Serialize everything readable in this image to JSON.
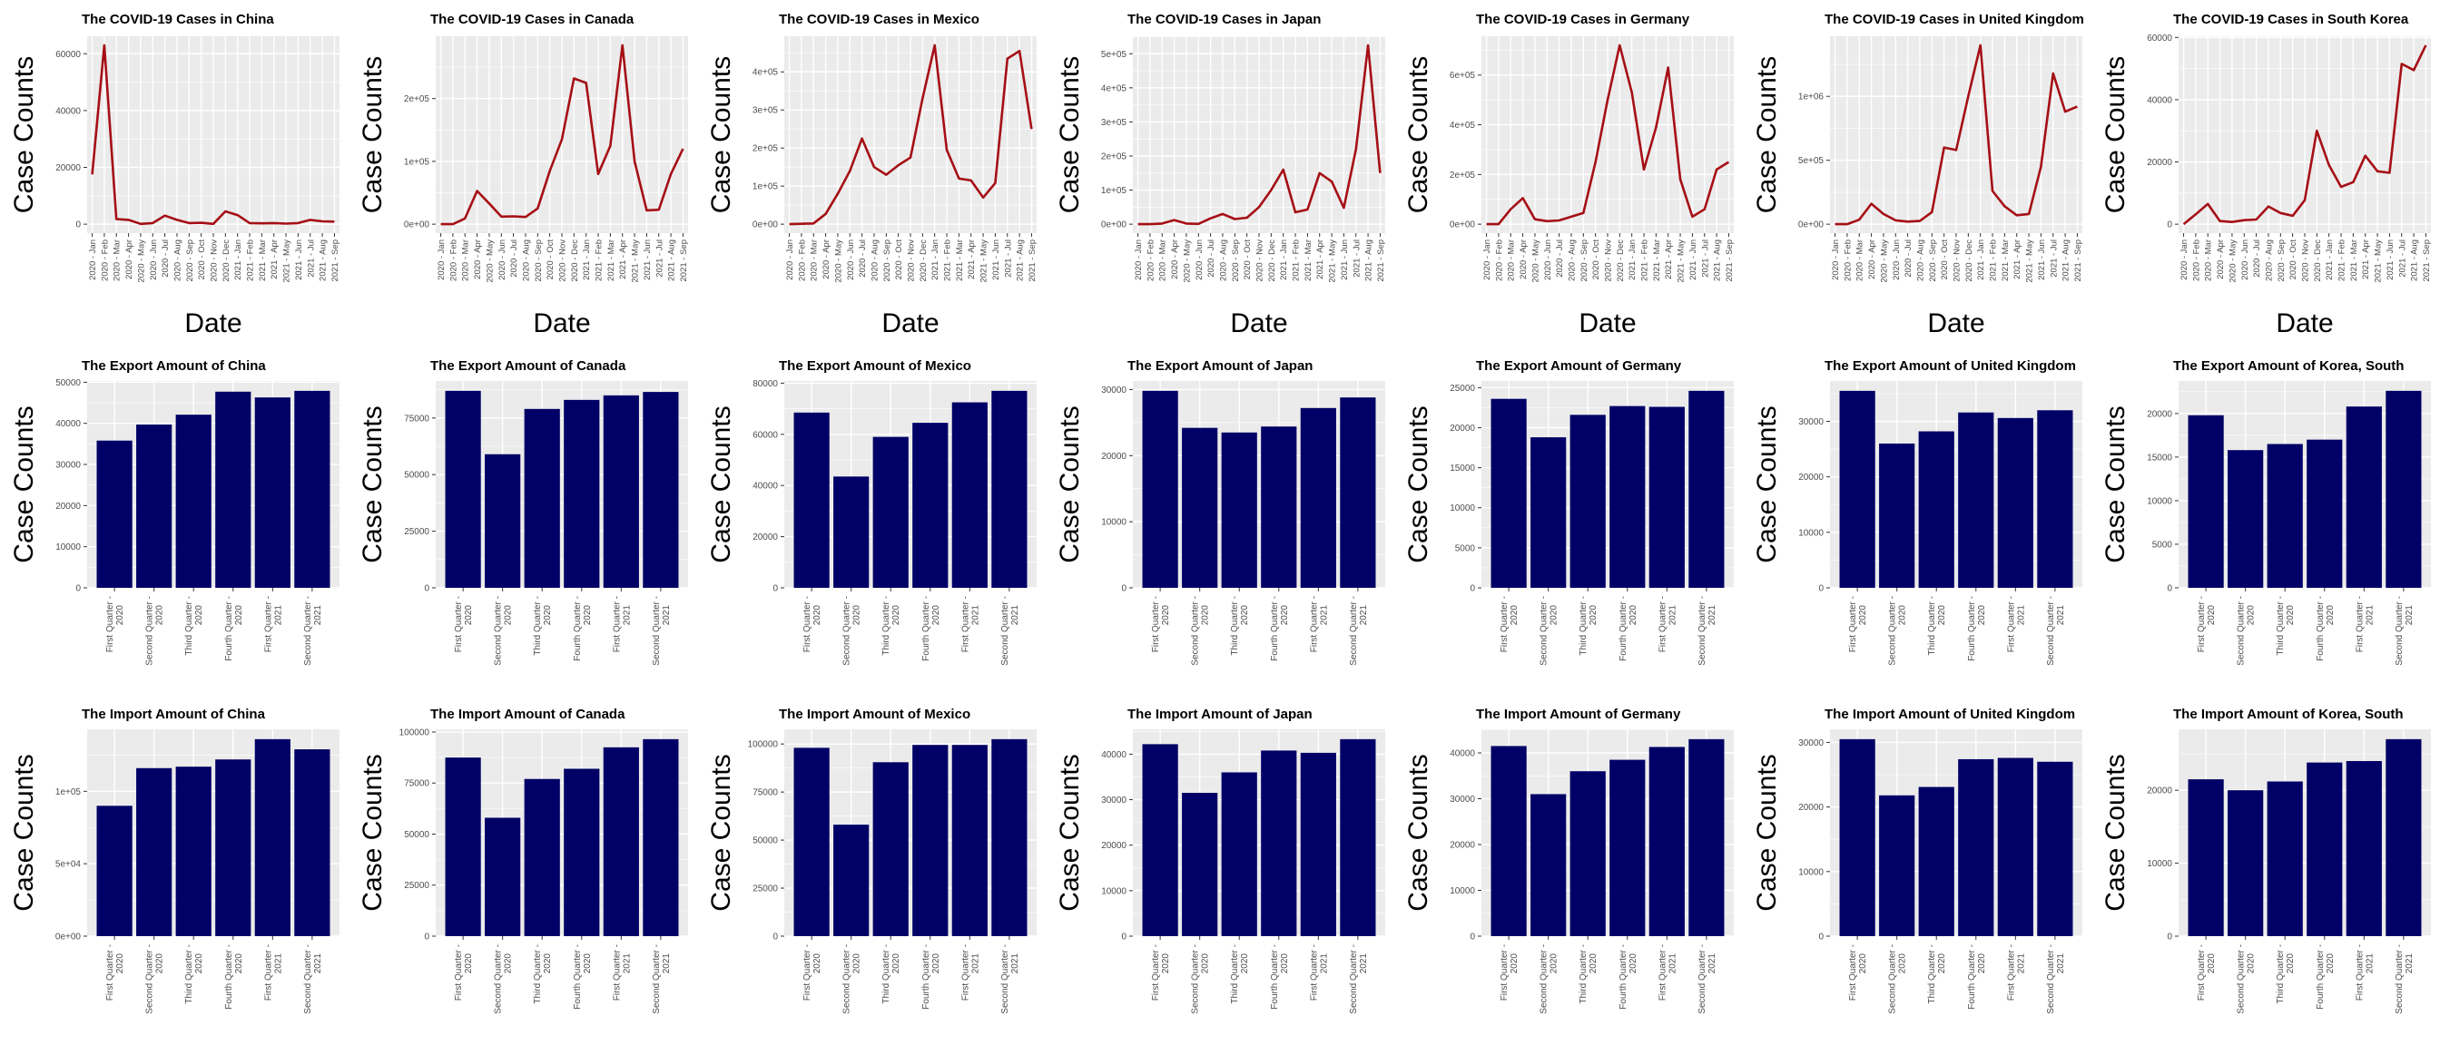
{
  "colors": {
    "panel_bg": "#ebebeb",
    "grid_major": "#ffffff",
    "line": "#a50f15",
    "bar": "#000066",
    "text": "#000000",
    "tick_text": "#4d4d4d"
  },
  "chart_data": [
    {
      "type": "line",
      "title": "The COVID-19 Cases in China",
      "xlabel": "Date",
      "ylabel": "Case Counts",
      "categories": [
        "2020 - Jan",
        "2020 - Feb",
        "2020 - Mar",
        "2020 - Apr",
        "2020 - May",
        "2020 - Jun",
        "2020 - Jul",
        "2020 - Aug",
        "2020 - Sep",
        "2020 - Oct",
        "2020 - Nov",
        "2020 - Dec",
        "2021 - Jan",
        "2021 - Feb",
        "2021 - Mar",
        "2021 - Apr",
        "2021 - May",
        "2021 - Jun",
        "2021 - Jul",
        "2021 - Aug",
        "2021 - Sep"
      ],
      "values": [
        17500,
        63000,
        1800,
        1500,
        100,
        400,
        3000,
        1500,
        400,
        500,
        100,
        4500,
        3200,
        400,
        300,
        400,
        200,
        400,
        1500,
        1000,
        900
      ],
      "yticks": [
        "0",
        "20000",
        "40000",
        "60000"
      ],
      "ytick_values": [
        0,
        20000,
        40000,
        60000
      ],
      "ylim": [
        -3150,
        66150
      ],
      "grid": true
    },
    {
      "type": "line",
      "title": "The COVID-19 Cases in Canada",
      "xlabel": "Date",
      "ylabel": "Case Counts",
      "categories": [
        "2020 - Jan",
        "2020 - Feb",
        "2020 - Mar",
        "2020 - Apr",
        "2020 - May",
        "2020 - Jun",
        "2020 - Jul",
        "2020 - Aug",
        "2020 - Sep",
        "2020 - Oct",
        "2020 - Nov",
        "2020 - Dec",
        "2021 - Jan",
        "2021 - Feb",
        "2021 - Mar",
        "2021 - Apr",
        "2021 - May",
        "2021 - Jun",
        "2021 - Jul",
        "2021 - Aug",
        "2021 - Sep"
      ],
      "values": [
        0,
        50,
        9000,
        53000,
        33000,
        12000,
        12500,
        11500,
        25000,
        85000,
        135000,
        232000,
        225000,
        80000,
        125000,
        285000,
        100000,
        22000,
        23000,
        80000,
        120000
      ],
      "yticks": [
        "0e+00",
        "1e+05",
        "2e+05"
      ],
      "ytick_values": [
        0,
        100000,
        200000
      ],
      "ylim": [
        -14250,
        299250
      ],
      "grid": true
    },
    {
      "type": "line",
      "title": "The COVID-19 Cases in Mexico",
      "xlabel": "Date",
      "ylabel": "Case Counts",
      "categories": [
        "2020 - Jan",
        "2020 - Feb",
        "2020 - Mar",
        "2020 - Apr",
        "2020 - May",
        "2020 - Jun",
        "2020 - Jul",
        "2020 - Aug",
        "2020 - Sep",
        "2020 - Oct",
        "2020 - Nov",
        "2020 - Dec",
        "2021 - Jan",
        "2021 - Feb",
        "2021 - Mar",
        "2021 - Apr",
        "2021 - May",
        "2021 - Jun",
        "2021 - Jul",
        "2021 - Aug",
        "2021 - Sep"
      ],
      "values": [
        0,
        1000,
        2000,
        27000,
        80000,
        140000,
        225000,
        150000,
        130000,
        155000,
        175000,
        330000,
        470000,
        195000,
        120000,
        115000,
        70000,
        108000,
        435000,
        455000,
        250000
      ],
      "yticks": [
        "0e+00",
        "1e+05",
        "2e+05",
        "3e+05",
        "4e+05"
      ],
      "ytick_values": [
        0,
        100000,
        200000,
        300000,
        400000
      ],
      "ylim": [
        -23500,
        493500
      ],
      "grid": true
    },
    {
      "type": "line",
      "title": "The COVID-19 Cases in Japan",
      "xlabel": "Date",
      "ylabel": "Case Counts",
      "categories": [
        "2020 - Jan",
        "2020 - Feb",
        "2020 - Mar",
        "2020 - Apr",
        "2020 - May",
        "2020 - Jun",
        "2020 - Jul",
        "2020 - Aug",
        "2020 - Sep",
        "2020 - Oct",
        "2020 - Nov",
        "2020 - Dec",
        "2021 - Jan",
        "2021 - Feb",
        "2021 - Mar",
        "2021 - Apr",
        "2021 - May",
        "2021 - Jun",
        "2021 - Jul",
        "2021 - Aug",
        "2021 - Sep"
      ],
      "values": [
        0,
        200,
        2000,
        12000,
        2000,
        1000,
        17000,
        30000,
        15000,
        19000,
        50000,
        100000,
        160000,
        35000,
        43000,
        150000,
        125000,
        48000,
        220000,
        525000,
        150000
      ],
      "yticks": [
        "0e+00",
        "1e+05",
        "2e+05",
        "3e+05",
        "4e+05",
        "5e+05"
      ],
      "ytick_values": [
        0,
        100000,
        200000,
        300000,
        400000,
        500000
      ],
      "ylim": [
        -26250,
        551250
      ],
      "grid": true
    },
    {
      "type": "line",
      "title": "The COVID-19 Cases in Germany",
      "xlabel": "Date",
      "ylabel": "Case Counts",
      "categories": [
        "2020 - Jan",
        "2020 - Feb",
        "2020 - Mar",
        "2020 - Apr",
        "2020 - May",
        "2020 - Jun",
        "2020 - Jul",
        "2020 - Aug",
        "2020 - Sep",
        "2020 - Oct",
        "2020 - Nov",
        "2020 - Dec",
        "2021 - Jan",
        "2021 - Feb",
        "2021 - Mar",
        "2021 - Apr",
        "2021 - May",
        "2021 - Jun",
        "2021 - Jul",
        "2021 - Aug",
        "2021 - Sep"
      ],
      "values": [
        0,
        100,
        60000,
        105000,
        20000,
        12000,
        15000,
        30000,
        45000,
        250000,
        500000,
        720000,
        530000,
        220000,
        390000,
        630000,
        180000,
        30000,
        60000,
        220000,
        250000
      ],
      "yticks": [
        "0e+00",
        "2e+05",
        "4e+05",
        "6e+05"
      ],
      "ytick_values": [
        0,
        200000,
        400000,
        600000
      ],
      "ylim": [
        -36000,
        756000
      ],
      "grid": true
    },
    {
      "type": "line",
      "title": "The COVID-19 Cases in United Kingdom",
      "xlabel": "Date",
      "ylabel": "Case Counts",
      "categories": [
        "2020 - Jan",
        "2020 - Feb",
        "2020 - Mar",
        "2020 - Apr",
        "2020 - May",
        "2020 - Jun",
        "2020 - Jul",
        "2020 - Aug",
        "2020 - Sep",
        "2020 - Oct",
        "2020 - Nov",
        "2020 - Dec",
        "2021 - Jan",
        "2021 - Feb",
        "2021 - Mar",
        "2021 - Apr",
        "2021 - May",
        "2021 - Jun",
        "2021 - Jul",
        "2021 - Aug",
        "2021 - Sep"
      ],
      "values": [
        0,
        100,
        35000,
        160000,
        80000,
        30000,
        20000,
        25000,
        95000,
        600000,
        580000,
        1000000,
        1400000,
        260000,
        140000,
        70000,
        80000,
        450000,
        1180000,
        880000,
        920000
      ],
      "yticks": [
        "0e+00",
        "5e+05",
        "1e+06"
      ],
      "ytick_values": [
        0,
        500000,
        1000000
      ],
      "ylim": [
        -70000,
        1470000
      ],
      "grid": true
    },
    {
      "type": "line",
      "title": "The COVID-19 Cases in South Korea",
      "xlabel": "Date",
      "ylabel": "Case Counts",
      "categories": [
        "2020 - Jan",
        "2020 - Feb",
        "2020 - Mar",
        "2020 - Apr",
        "2020 - May",
        "2020 - Jun",
        "2020 - Jul",
        "2020 - Aug",
        "2020 - Sep",
        "2020 - Oct",
        "2020 - Nov",
        "2020 - Dec",
        "2021 - Jan",
        "2021 - Feb",
        "2021 - Mar",
        "2021 - Apr",
        "2021 - May",
        "2021 - Jun",
        "2021 - Jul",
        "2021 - Aug",
        "2021 - Sep"
      ],
      "values": [
        10,
        3200,
        6500,
        1000,
        700,
        1300,
        1500,
        5700,
        3600,
        2700,
        7700,
        30000,
        19000,
        12000,
        13500,
        22000,
        17000,
        16500,
        51500,
        49500,
        57500
      ],
      "yticks": [
        "0",
        "20000",
        "40000",
        "60000"
      ],
      "ytick_values": [
        0,
        20000,
        40000,
        60000
      ],
      "ylim": [
        -2875,
        60375
      ],
      "grid": true
    },
    {
      "type": "bar",
      "title": "The Export Amount of China",
      "ylabel": "Case Counts",
      "categories": [
        "First Quarter 2020",
        "Second Quarter 2020",
        "Third Quarter 2020",
        "Fourth Quarter 2020",
        "First Quarter 2021",
        "Second Quarter 2021"
      ],
      "values": [
        35800,
        39700,
        42100,
        47700,
        46300,
        47900
      ],
      "yticks": [
        "0",
        "10000",
        "20000",
        "30000",
        "40000",
        "50000"
      ],
      "ytick_values": [
        0,
        10000,
        20000,
        30000,
        40000,
        50000
      ],
      "ylim": [
        0,
        50300
      ],
      "grid": true
    },
    {
      "type": "bar",
      "title": "The Export Amount of Canada",
      "ylabel": "Case Counts",
      "categories": [
        "First Quarter 2020",
        "Second Quarter 2020",
        "Third Quarter 2020",
        "Fourth Quarter 2020",
        "First Quarter 2021",
        "Second Quarter 2021"
      ],
      "values": [
        87000,
        59000,
        79000,
        83000,
        85000,
        86500
      ],
      "yticks": [
        "0",
        "25000",
        "50000",
        "75000"
      ],
      "ytick_values": [
        0,
        25000,
        50000,
        75000
      ],
      "ylim": [
        0,
        91350
      ],
      "grid": true
    },
    {
      "type": "bar",
      "title": "The Export Amount of Mexico",
      "ylabel": "Case Counts",
      "categories": [
        "First Quarter 2020",
        "Second Quarter 2020",
        "Third Quarter 2020",
        "Fourth Quarter 2020",
        "First Quarter 2021",
        "Second Quarter 2021"
      ],
      "values": [
        68500,
        43500,
        59000,
        64500,
        72500,
        77000
      ],
      "yticks": [
        "0",
        "20000",
        "40000",
        "60000",
        "80000"
      ],
      "ytick_values": [
        0,
        20000,
        40000,
        60000,
        80000
      ],
      "ylim": [
        0,
        80850
      ],
      "grid": true
    },
    {
      "type": "bar",
      "title": "The Export Amount of Japan",
      "ylabel": "Case Counts",
      "categories": [
        "First Quarter 2020",
        "Second Quarter 2020",
        "Third Quarter 2020",
        "Fourth Quarter 2020",
        "First Quarter 2021",
        "Second Quarter 2021"
      ],
      "values": [
        29800,
        24200,
        23500,
        24400,
        27200,
        28800
      ],
      "yticks": [
        "0",
        "10000",
        "20000",
        "30000"
      ],
      "ytick_values": [
        0,
        10000,
        20000,
        30000
      ],
      "ylim": [
        0,
        31290
      ],
      "grid": true
    },
    {
      "type": "bar",
      "title": "The Export Amount of Germany",
      "ylabel": "Case Counts",
      "categories": [
        "First Quarter 2020",
        "Second Quarter 2020",
        "Third Quarter 2020",
        "Fourth Quarter 2020",
        "First Quarter 2021",
        "Second Quarter 2021"
      ],
      "values": [
        23600,
        18800,
        21600,
        22700,
        22600,
        24600
      ],
      "yticks": [
        "0",
        "5000",
        "10000",
        "15000",
        "20000",
        "25000"
      ],
      "ytick_values": [
        0,
        5000,
        10000,
        15000,
        20000,
        25000
      ],
      "ylim": [
        0,
        25830
      ],
      "grid": true
    },
    {
      "type": "bar",
      "title": "The Export Amount of United Kingdom",
      "ylabel": "Case Counts",
      "categories": [
        "First Quarter 2020",
        "Second Quarter 2020",
        "Third Quarter 2020",
        "Fourth Quarter 2020",
        "First Quarter 2021",
        "Second Quarter 2021"
      ],
      "values": [
        35500,
        26000,
        28200,
        31600,
        30600,
        32000
      ],
      "yticks": [
        "0",
        "10000",
        "20000",
        "30000"
      ],
      "ytick_values": [
        0,
        10000,
        20000,
        30000
      ],
      "ylim": [
        0,
        37275
      ],
      "grid": true
    },
    {
      "type": "bar",
      "title": "The Export Amount of Korea, South",
      "ylabel": "Case Counts",
      "categories": [
        "First Quarter 2020",
        "Second Quarter 2020",
        "Third Quarter 2020",
        "Fourth Quarter 2020",
        "First Quarter 2021",
        "Second Quarter 2021"
      ],
      "values": [
        19800,
        15800,
        16500,
        17000,
        20800,
        22600
      ],
      "yticks": [
        "0",
        "5000",
        "10000",
        "15000",
        "20000"
      ],
      "ytick_values": [
        0,
        5000,
        10000,
        15000,
        20000
      ],
      "ylim": [
        0,
        23730
      ],
      "grid": true
    },
    {
      "type": "bar",
      "title": "The Import Amount of China",
      "ylabel": "Case Counts",
      "categories": [
        "First Quarter 2020",
        "Second Quarter 2020",
        "Third Quarter 2020",
        "Fourth Quarter 2020",
        "First Quarter 2021",
        "Second Quarter 2021"
      ],
      "values": [
        90000,
        116000,
        117000,
        122000,
        136000,
        129000
      ],
      "yticks": [
        "0e+00",
        "5e+04",
        "1e+05"
      ],
      "ytick_values": [
        0,
        50000,
        100000
      ],
      "ylim": [
        0,
        142800
      ],
      "grid": true
    },
    {
      "type": "bar",
      "title": "The Import Amount of Canada",
      "ylabel": "Case Counts",
      "categories": [
        "First Quarter 2020",
        "Second Quarter 2020",
        "Third Quarter 2020",
        "Fourth Quarter 2020",
        "First Quarter 2021",
        "Second Quarter 2021"
      ],
      "values": [
        87500,
        58000,
        77000,
        82000,
        92500,
        96500
      ],
      "yticks": [
        "0",
        "25000",
        "50000",
        "75000",
        "100000"
      ],
      "ytick_values": [
        0,
        25000,
        50000,
        75000,
        100000
      ],
      "ylim": [
        0,
        101325
      ],
      "grid": true
    },
    {
      "type": "bar",
      "title": "The Import Amount of Mexico",
      "ylabel": "Case Counts",
      "categories": [
        "First Quarter 2020",
        "Second Quarter 2020",
        "Third Quarter 2020",
        "Fourth Quarter 2020",
        "First Quarter 2021",
        "Second Quarter 2021"
      ],
      "values": [
        98000,
        58000,
        90500,
        99500,
        99500,
        102500
      ],
      "yticks": [
        "0",
        "25000",
        "50000",
        "75000",
        "100000"
      ],
      "ytick_values": [
        0,
        25000,
        50000,
        75000,
        100000
      ],
      "ylim": [
        0,
        107625
      ],
      "grid": true
    },
    {
      "type": "bar",
      "title": "The Import Amount of Japan",
      "ylabel": "Case Counts",
      "categories": [
        "First Quarter 2020",
        "Second Quarter 2020",
        "Third Quarter 2020",
        "Fourth Quarter 2020",
        "First Quarter 2021",
        "Second Quarter 2021"
      ],
      "values": [
        42200,
        31500,
        36000,
        40800,
        40300,
        43300
      ],
      "yticks": [
        "0",
        "10000",
        "20000",
        "30000",
        "40000"
      ],
      "ytick_values": [
        0,
        10000,
        20000,
        30000,
        40000
      ],
      "ylim": [
        0,
        45465
      ],
      "grid": true
    },
    {
      "type": "bar",
      "title": "The Import Amount of Germany",
      "ylabel": "Case Counts",
      "categories": [
        "First Quarter 2020",
        "Second Quarter 2020",
        "Third Quarter 2020",
        "Fourth Quarter 2020",
        "First Quarter 2021",
        "Second Quarter 2021"
      ],
      "values": [
        41500,
        31000,
        36000,
        38500,
        41300,
        43000
      ],
      "yticks": [
        "0",
        "10000",
        "20000",
        "30000",
        "40000"
      ],
      "ytick_values": [
        0,
        10000,
        20000,
        30000,
        40000
      ],
      "ylim": [
        0,
        45150
      ],
      "grid": true
    },
    {
      "type": "bar",
      "title": "The Import Amount of United Kingdom",
      "ylabel": "Case Counts",
      "categories": [
        "First Quarter 2020",
        "Second Quarter 2020",
        "Third Quarter 2020",
        "Fourth Quarter 2020",
        "First Quarter 2021",
        "Second Quarter 2021"
      ],
      "values": [
        30500,
        21800,
        23100,
        27400,
        27600,
        27000
      ],
      "yticks": [
        "0",
        "10000",
        "20000",
        "30000"
      ],
      "ytick_values": [
        0,
        10000,
        20000,
        30000
      ],
      "ylim": [
        0,
        32025
      ],
      "grid": true
    },
    {
      "type": "bar",
      "title": "The Import Amount of Korea, South",
      "ylabel": "Case Counts",
      "categories": [
        "First Quarter 2020",
        "Second Quarter 2020",
        "Third Quarter 2020",
        "Fourth Quarter 2020",
        "First Quarter 2021",
        "Second Quarter 2021"
      ],
      "values": [
        21500,
        20000,
        21200,
        23800,
        24000,
        27000
      ],
      "yticks": [
        "0",
        "10000",
        "20000"
      ],
      "ytick_values": [
        0,
        10000,
        20000
      ],
      "ylim": [
        0,
        28350
      ],
      "grid": true
    }
  ]
}
